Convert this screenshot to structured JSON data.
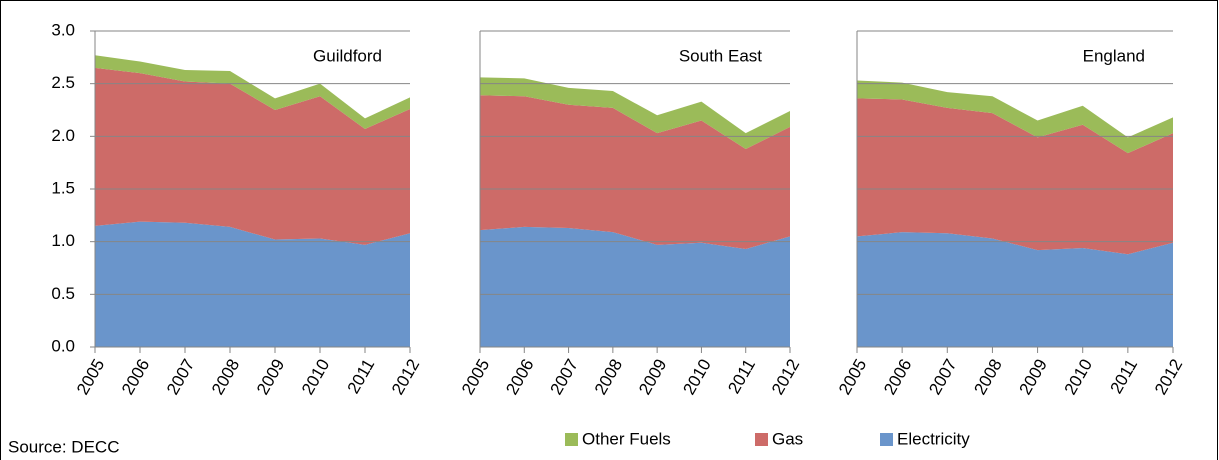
{
  "chart_data": [
    {
      "type": "stacked-area",
      "title": "Guildford",
      "categories": [
        "2005",
        "2006",
        "2007",
        "2008",
        "2009",
        "2010",
        "2011",
        "2012"
      ],
      "series": [
        {
          "name": "Electricity",
          "color": "#6a95cb",
          "values": [
            1.15,
            1.19,
            1.18,
            1.14,
            1.02,
            1.03,
            0.97,
            1.08
          ]
        },
        {
          "name": "Gas",
          "color": "#cd6b68",
          "values": [
            1.5,
            1.41,
            1.34,
            1.36,
            1.23,
            1.35,
            1.1,
            1.18
          ]
        },
        {
          "name": "Other Fuels",
          "color": "#9bbb59",
          "values": [
            0.12,
            0.11,
            0.11,
            0.12,
            0.11,
            0.12,
            0.1,
            0.11
          ]
        }
      ],
      "ylim": [
        0,
        3
      ],
      "yticks": [
        {
          "value": 0,
          "label": "0.0"
        },
        {
          "value": 0.5,
          "label": "0.5"
        },
        {
          "value": 1,
          "label": "1.0"
        },
        {
          "value": 1.5,
          "label": "1.5"
        },
        {
          "value": 2,
          "label": "2.0"
        },
        {
          "value": 2.5,
          "label": "2.5"
        },
        {
          "value": 3,
          "label": "3.0"
        }
      ],
      "grid": true
    },
    {
      "type": "stacked-area",
      "title": "South East",
      "categories": [
        "2005",
        "2006",
        "2007",
        "2008",
        "2009",
        "2010",
        "2011",
        "2012"
      ],
      "series": [
        {
          "name": "Electricity",
          "color": "#6a95cb",
          "values": [
            1.11,
            1.14,
            1.13,
            1.09,
            0.97,
            0.99,
            0.93,
            1.05
          ]
        },
        {
          "name": "Gas",
          "color": "#cd6b68",
          "values": [
            1.28,
            1.24,
            1.17,
            1.18,
            1.06,
            1.16,
            0.95,
            1.04
          ]
        },
        {
          "name": "Other Fuels",
          "color": "#9bbb59",
          "values": [
            0.17,
            0.17,
            0.16,
            0.16,
            0.17,
            0.18,
            0.15,
            0.15
          ]
        }
      ],
      "ylim": [
        0,
        3
      ],
      "yticks": [
        0,
        0.5,
        1,
        1.5,
        2,
        2.5,
        3
      ],
      "grid": true
    },
    {
      "type": "stacked-area",
      "title": "England",
      "categories": [
        "2005",
        "2006",
        "2007",
        "2008",
        "2009",
        "2010",
        "2011",
        "2012"
      ],
      "series": [
        {
          "name": "Electricity",
          "color": "#6a95cb",
          "values": [
            1.05,
            1.09,
            1.08,
            1.03,
            0.92,
            0.94,
            0.88,
            0.99
          ]
        },
        {
          "name": "Gas",
          "color": "#cd6b68",
          "values": [
            1.31,
            1.26,
            1.19,
            1.19,
            1.07,
            1.17,
            0.96,
            1.04
          ]
        },
        {
          "name": "Other Fuels",
          "color": "#9bbb59",
          "values": [
            0.17,
            0.16,
            0.15,
            0.16,
            0.16,
            0.18,
            0.15,
            0.15
          ]
        }
      ],
      "ylim": [
        0,
        3
      ],
      "yticks": [
        0,
        0.5,
        1,
        1.5,
        2,
        2.5,
        3
      ],
      "grid": true
    }
  ],
  "source": "Source: DECC"
}
